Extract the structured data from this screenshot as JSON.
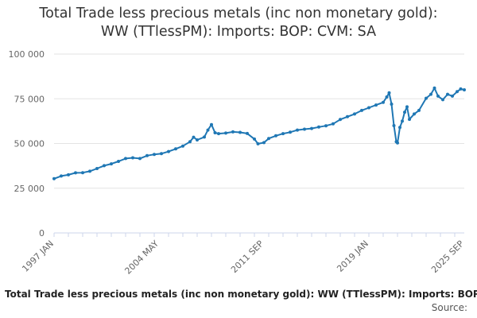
{
  "chart_data": {
    "type": "line",
    "title_lines": [
      "Total Trade less precious metals (inc non monetary gold):",
      "WW (TTlessPM): Imports: BOP: CVM: SA"
    ],
    "xlabel": "",
    "ylabel": "",
    "ylim": [
      0,
      100000
    ],
    "y_ticks": [
      {
        "value": 0,
        "label": "0"
      },
      {
        "value": 25000,
        "label": "25 000"
      },
      {
        "value": 50000,
        "label": "50 000"
      },
      {
        "value": 75000,
        "label": "75 000"
      },
      {
        "value": 100000,
        "label": "100 000"
      }
    ],
    "x_ticks": [
      {
        "date": "1997-01",
        "label": "1997 JAN"
      },
      {
        "date": "2004-05",
        "label": "2004 MAY"
      },
      {
        "date": "2011-09",
        "label": "2011 SEP"
      },
      {
        "date": "2019-01",
        "label": "2019 JAN"
      },
      {
        "date": "2025-09",
        "label": "2025 SEP"
      }
    ],
    "grid": "horizontal",
    "legend": "none",
    "series": [
      {
        "color": "#1f77b4",
        "points": [
          [
            "1997-01",
            30300
          ],
          [
            "1997-07",
            31800
          ],
          [
            "1998-01",
            32500
          ],
          [
            "1998-07",
            33600
          ],
          [
            "1999-01",
            33700
          ],
          [
            "1999-07",
            34500
          ],
          [
            "2000-01",
            36000
          ],
          [
            "2000-07",
            37600
          ],
          [
            "2001-01",
            38600
          ],
          [
            "2001-07",
            40000
          ],
          [
            "2002-01",
            41600
          ],
          [
            "2002-07",
            42000
          ],
          [
            "2003-01",
            41600
          ],
          [
            "2003-07",
            43200
          ],
          [
            "2004-01",
            43900
          ],
          [
            "2004-07",
            44300
          ],
          [
            "2005-01",
            45500
          ],
          [
            "2005-07",
            47000
          ],
          [
            "2006-01",
            48600
          ],
          [
            "2006-07",
            51000
          ],
          [
            "2006-10",
            53500
          ],
          [
            "2007-01",
            52000
          ],
          [
            "2007-07",
            53600
          ],
          [
            "2007-10",
            57500
          ],
          [
            "2008-01",
            60600
          ],
          [
            "2008-04",
            56000
          ],
          [
            "2008-07",
            55500
          ],
          [
            "2009-01",
            55800
          ],
          [
            "2009-07",
            56500
          ],
          [
            "2010-01",
            56200
          ],
          [
            "2010-07",
            55600
          ],
          [
            "2011-01",
            52500
          ],
          [
            "2011-04",
            49800
          ],
          [
            "2011-09",
            50500
          ],
          [
            "2012-01",
            52800
          ],
          [
            "2012-07",
            54300
          ],
          [
            "2013-01",
            55500
          ],
          [
            "2013-07",
            56300
          ],
          [
            "2014-01",
            57500
          ],
          [
            "2014-07",
            58000
          ],
          [
            "2015-01",
            58400
          ],
          [
            "2015-07",
            59200
          ],
          [
            "2016-01",
            59900
          ],
          [
            "2016-07",
            61000
          ],
          [
            "2017-01",
            63400
          ],
          [
            "2017-07",
            65000
          ],
          [
            "2018-01",
            66500
          ],
          [
            "2018-07",
            68500
          ],
          [
            "2019-01",
            70000
          ],
          [
            "2019-07",
            71500
          ],
          [
            "2020-01",
            73000
          ],
          [
            "2020-04",
            76000
          ],
          [
            "2020-06",
            78300
          ],
          [
            "2020-08",
            72000
          ],
          [
            "2020-10",
            60000
          ],
          [
            "2020-12",
            51000
          ],
          [
            "2021-01",
            50300
          ],
          [
            "2021-03",
            59000
          ],
          [
            "2021-05",
            62500
          ],
          [
            "2021-07",
            67500
          ],
          [
            "2021-09",
            70500
          ],
          [
            "2021-11",
            63500
          ],
          [
            "2022-03",
            66500
          ],
          [
            "2022-07",
            68500
          ],
          [
            "2023-01",
            75300
          ],
          [
            "2023-05",
            77500
          ],
          [
            "2023-08",
            81000
          ],
          [
            "2023-11",
            76500
          ],
          [
            "2024-03",
            74500
          ],
          [
            "2024-07",
            77500
          ],
          [
            "2024-11",
            76500
          ],
          [
            "2025-03",
            79000
          ],
          [
            "2025-06",
            80500
          ],
          [
            "2025-09",
            80000
          ]
        ]
      }
    ]
  },
  "footer": {
    "subtitle": "Total Trade less precious metals (inc non monetary gold): WW (TTlessPM): Imports: BOP: CVM: SA",
    "source": "Source: "
  }
}
